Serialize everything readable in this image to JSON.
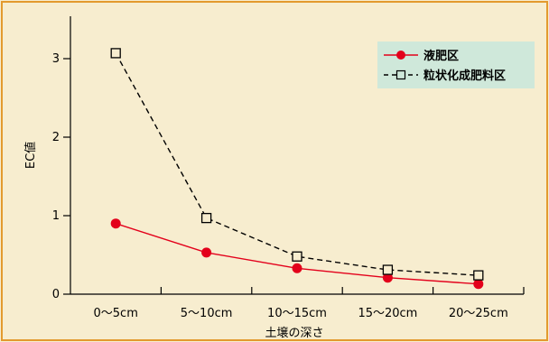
{
  "colors": {
    "background": "#F7EDCF",
    "frame": "#E39A2E",
    "legend_bg": "#CFE8DA",
    "series_1": "#E3001B",
    "series_2": "#000000"
  },
  "chart_data": {
    "type": "line",
    "categories": [
      "0～5cm",
      "5～10cm",
      "10～15cm",
      "15～20cm",
      "20～25cm"
    ],
    "series": [
      {
        "name": "液肥区",
        "values": [
          0.9,
          0.53,
          0.33,
          0.21,
          0.13
        ],
        "marker": "filled-circle",
        "line": "solid"
      },
      {
        "name": "粒状化成肥料区",
        "values": [
          3.07,
          0.97,
          0.48,
          0.31,
          0.24
        ],
        "marker": "open-square",
        "line": "dashed"
      }
    ],
    "xlabel": "土壌の深さ",
    "ylabel": "EC値",
    "yticks": [
      "0",
      "1",
      "2",
      "3"
    ],
    "ylim": [
      0,
      3.35
    ],
    "grid": false,
    "legend_position": "top-right"
  }
}
